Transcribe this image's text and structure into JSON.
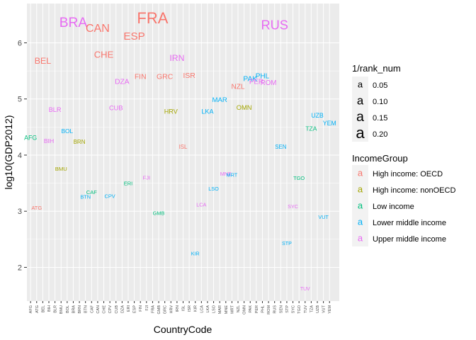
{
  "chart_data": {
    "type": "scatter",
    "title": "",
    "xlabel": "CountryCode",
    "ylabel": "log10(GDP2012)",
    "ylim": [
      1.4,
      6.7
    ],
    "yticks": [
      2,
      3,
      4,
      5,
      6
    ],
    "grid": true,
    "categories": [
      "AFG",
      "ATG",
      "BEL",
      "BIH",
      "BLR",
      "BMU",
      "BOL",
      "BRA",
      "BRN",
      "BTN",
      "CAF",
      "CAN",
      "CHE",
      "CPV",
      "CUB",
      "DZA",
      "ERI",
      "ESP",
      "FIN",
      "FJI",
      "FRA",
      "GMB",
      "GRC",
      "HRV",
      "IRN",
      "ISL",
      "ISR",
      "KIR",
      "LCA",
      "LKA",
      "LSO",
      "MAR",
      "MNE",
      "MRT",
      "NZL",
      "OMN",
      "PAK",
      "PER",
      "PHL",
      "ROM",
      "RUS",
      "SEN",
      "STP",
      "SYC",
      "TGO",
      "TUV",
      "TZA",
      "UZB",
      "VUT",
      "YEM"
    ],
    "points": [
      {
        "code": "AFG",
        "y": 4.3,
        "group": "Low income",
        "rank_inv": 0.0143
      },
      {
        "code": "ATG",
        "y": 3.05,
        "group": "High income: OECD",
        "rank_inv": 0.0077
      },
      {
        "code": "BEL",
        "y": 5.67,
        "group": "High income: OECD",
        "rank_inv": 0.0435
      },
      {
        "code": "BIH",
        "y": 4.24,
        "group": "Upper middle income",
        "rank_inv": 0.0132
      },
      {
        "code": "BLR",
        "y": 4.8,
        "group": "Upper middle income",
        "rank_inv": 0.0172
      },
      {
        "code": "BMU",
        "y": 3.75,
        "group": "High income: nonOECD",
        "rank_inv": 0.0083
      },
      {
        "code": "BOL",
        "y": 4.42,
        "group": "Lower middle income",
        "rank_inv": 0.0119
      },
      {
        "code": "BRA",
        "y": 6.35,
        "group": "Upper middle income",
        "rank_inv": 0.1429
      },
      {
        "code": "BRN",
        "y": 4.23,
        "group": "High income: nonOECD",
        "rank_inv": 0.0101
      },
      {
        "code": "BTN",
        "y": 3.25,
        "group": "Lower middle income",
        "rank_inv": 0.0071
      },
      {
        "code": "CAF",
        "y": 3.33,
        "group": "Low income",
        "rank_inv": 0.0075
      },
      {
        "code": "CAN",
        "y": 6.25,
        "group": "High income: OECD",
        "rank_inv": 0.0909
      },
      {
        "code": "CHE",
        "y": 5.78,
        "group": "High income: OECD",
        "rank_inv": 0.05
      },
      {
        "code": "CPV",
        "y": 3.26,
        "group": "Lower middle income",
        "rank_inv": 0.0072
      },
      {
        "code": "CUB",
        "y": 4.83,
        "group": "Upper middle income",
        "rank_inv": 0.0167
      },
      {
        "code": "DZA",
        "y": 5.3,
        "group": "Upper middle income",
        "rank_inv": 0.0244
      },
      {
        "code": "ERI",
        "y": 3.49,
        "group": "Low income",
        "rank_inv": 0.0076
      },
      {
        "code": "ESP",
        "y": 6.11,
        "group": "High income: OECD",
        "rank_inv": 0.0769
      },
      {
        "code": "FIN",
        "y": 5.39,
        "group": "High income: OECD",
        "rank_inv": 0.025
      },
      {
        "code": "FJI",
        "y": 3.59,
        "group": "Upper middle income",
        "rank_inv": 0.0078
      },
      {
        "code": "FRA",
        "y": 6.42,
        "group": "High income: OECD",
        "rank_inv": 0.2
      },
      {
        "code": "GMB",
        "y": 2.96,
        "group": "Low income",
        "rank_inv": 0.0068
      },
      {
        "code": "GRC",
        "y": 5.39,
        "group": "High income: OECD",
        "rank_inv": 0.0256
      },
      {
        "code": "HRV",
        "y": 4.77,
        "group": "High income: nonOECD",
        "rank_inv": 0.0164
      },
      {
        "code": "IRN",
        "y": 5.72,
        "group": "Upper middle income",
        "rank_inv": 0.0417
      },
      {
        "code": "ISL",
        "y": 4.14,
        "group": "High income: OECD",
        "rank_inv": 0.0095
      },
      {
        "code": "ISR",
        "y": 5.41,
        "group": "High income: OECD",
        "rank_inv": 0.0263
      },
      {
        "code": "KIR",
        "y": 2.24,
        "group": "Lower middle income",
        "rank_inv": 0.0061
      },
      {
        "code": "LCA",
        "y": 3.11,
        "group": "Upper middle income",
        "rank_inv": 0.0066
      },
      {
        "code": "LKA",
        "y": 4.77,
        "group": "Lower middle income",
        "rank_inv": 0.0159
      },
      {
        "code": "LSO",
        "y": 3.39,
        "group": "Lower middle income",
        "rank_inv": 0.0069
      },
      {
        "code": "MAR",
        "y": 4.98,
        "group": "Lower middle income",
        "rank_inv": 0.0192
      },
      {
        "code": "MNE",
        "y": 3.66,
        "group": "Upper middle income",
        "rank_inv": 0.0067
      },
      {
        "code": "MRT",
        "y": 3.64,
        "group": "Lower middle income",
        "rank_inv": 0.0069
      },
      {
        "code": "NZL",
        "y": 5.21,
        "group": "High income: OECD",
        "rank_inv": 0.0227
      },
      {
        "code": "OMN",
        "y": 4.84,
        "group": "High income: nonOECD",
        "rank_inv": 0.0175
      },
      {
        "code": "PAK",
        "y": 5.35,
        "group": "Lower middle income",
        "rank_inv": 0.0238
      },
      {
        "code": "PER",
        "y": 5.3,
        "group": "Upper middle income",
        "rank_inv": 0.0204
      },
      {
        "code": "PHL",
        "y": 5.4,
        "group": "Lower middle income",
        "rank_inv": 0.0222
      },
      {
        "code": "ROM",
        "y": 5.28,
        "group": "Upper middle income",
        "rank_inv": 0.02
      },
      {
        "code": "RUS",
        "y": 6.3,
        "group": "Upper middle income",
        "rank_inv": 0.125
      },
      {
        "code": "SEN",
        "y": 4.14,
        "group": "Lower middle income",
        "rank_inv": 0.0091
      },
      {
        "code": "STP",
        "y": 2.42,
        "group": "Lower middle income",
        "rank_inv": 0.0059
      },
      {
        "code": "SYC",
        "y": 3.08,
        "group": "Upper middle income",
        "rank_inv": 0.0062
      },
      {
        "code": "TGO",
        "y": 3.58,
        "group": "Low income",
        "rank_inv": 0.0073
      },
      {
        "code": "TUV",
        "y": 1.61,
        "group": "Upper middle income",
        "rank_inv": 0.0051
      },
      {
        "code": "TZA",
        "y": 4.46,
        "group": "Low income",
        "rank_inv": 0.0123
      },
      {
        "code": "UZB",
        "y": 4.7,
        "group": "Lower middle income",
        "rank_inv": 0.0141
      },
      {
        "code": "VUT",
        "y": 2.89,
        "group": "Lower middle income",
        "rank_inv": 0.0063
      },
      {
        "code": "YEM",
        "y": 4.56,
        "group": "Lower middle income",
        "rank_inv": 0.0139
      }
    ],
    "legend_size": {
      "title": "1/rank_num",
      "glyph": "a",
      "values": [
        "0.05",
        "0.10",
        "0.15",
        "0.20"
      ]
    },
    "legend_color": {
      "title": "IncomeGroup",
      "glyph": "a",
      "entries": [
        {
          "label": "High income: OECD",
          "color": "#F8766D"
        },
        {
          "label": "High income: nonOECD",
          "color": "#A3A500"
        },
        {
          "label": "Low income",
          "color": "#00BF7D"
        },
        {
          "label": "Lower middle income",
          "color": "#00B0F6"
        },
        {
          "label": "Upper middle income",
          "color": "#E76BF3"
        }
      ]
    },
    "legend_placement": "right",
    "panel_background": "#EBEBEB",
    "grid_color": "#FFFFFF"
  }
}
